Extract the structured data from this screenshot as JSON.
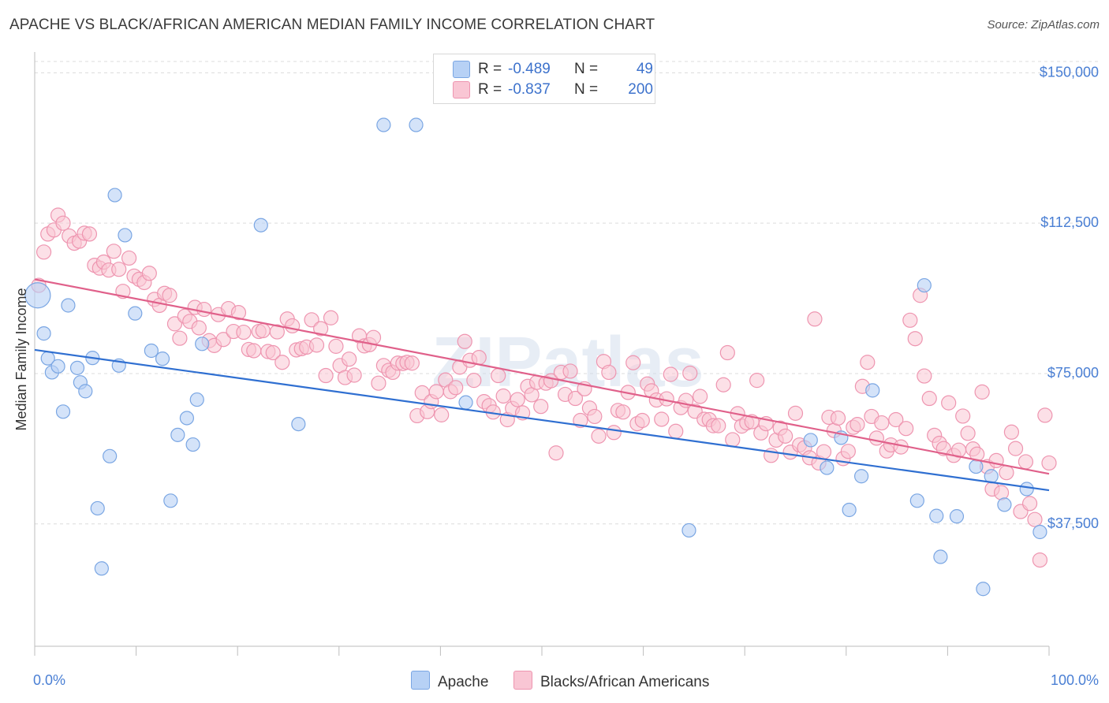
{
  "title": "APACHE VS BLACK/AFRICAN AMERICAN MEDIAN FAMILY INCOME CORRELATION CHART",
  "source": "Source: ZipAtlas.com",
  "watermark": "ZIPatlas",
  "colors": {
    "apache_fill": "#b7d1f5",
    "apache_stroke": "#7aa6e3",
    "apache_line": "#2f6fd1",
    "black_fill": "#f9c6d4",
    "black_stroke": "#ee95b0",
    "black_line": "#e0608a",
    "axis_text": "#4a7fd4",
    "grid": "#dcdcdc"
  },
  "legend": {
    "rows": [
      {
        "r_label": "R =",
        "r_value": "-0.489",
        "n_label": "N =",
        "n_value": "49"
      },
      {
        "r_label": "R =",
        "r_value": "-0.837",
        "n_label": "N =",
        "n_value": "200"
      }
    ]
  },
  "bottom_legend": [
    "Apache",
    "Blacks/African Americans"
  ],
  "chart_data": {
    "type": "scatter",
    "title": "APACHE VS BLACK/AFRICAN AMERICAN MEDIAN FAMILY INCOME CORRELATION CHART",
    "xlabel": "",
    "ylabel": "Median Family Income",
    "x_tick_labels": [
      "0.0%",
      "100.0%"
    ],
    "y_tick_labels": [
      "$37,500",
      "$75,000",
      "$112,500",
      "$150,000"
    ],
    "y_ticks": [
      37500,
      75000,
      112500,
      150000
    ],
    "xlim": [
      0,
      100
    ],
    "ylim": [
      7000,
      154000
    ],
    "grid": true,
    "legend_position": "top-center",
    "series": [
      {
        "name": "Apache",
        "R": -0.489,
        "N": 49,
        "trend": {
          "x0": 0,
          "y0": 80900,
          "x1": 100,
          "y1": 45900
        },
        "points": [
          [
            0.3,
            94500
          ],
          [
            0.9,
            85000
          ],
          [
            1.3,
            78800
          ],
          [
            1.7,
            75300
          ],
          [
            2.3,
            76800
          ],
          [
            2.8,
            65500
          ],
          [
            3.3,
            92000
          ],
          [
            4.2,
            76400
          ],
          [
            4.5,
            72800
          ],
          [
            5.0,
            70600
          ],
          [
            5.7,
            78900
          ],
          [
            6.2,
            41400
          ],
          [
            6.6,
            26400
          ],
          [
            7.4,
            54400
          ],
          [
            7.9,
            119500
          ],
          [
            8.3,
            77000
          ],
          [
            8.9,
            109500
          ],
          [
            9.9,
            90000
          ],
          [
            11.5,
            80700
          ],
          [
            12.6,
            78700
          ],
          [
            13.4,
            43300
          ],
          [
            14.1,
            59700
          ],
          [
            15.0,
            63900
          ],
          [
            15.6,
            57300
          ],
          [
            16.0,
            68500
          ],
          [
            16.5,
            82400
          ],
          [
            22.3,
            112000
          ],
          [
            26.0,
            62400
          ],
          [
            34.4,
            137000
          ],
          [
            37.6,
            137000
          ],
          [
            42.5,
            67800
          ],
          [
            64.5,
            35900
          ],
          [
            76.5,
            58400
          ],
          [
            78.1,
            51500
          ],
          [
            79.5,
            59000
          ],
          [
            80.3,
            41000
          ],
          [
            81.5,
            49400
          ],
          [
            82.6,
            70800
          ],
          [
            87.0,
            43300
          ],
          [
            87.7,
            97000
          ],
          [
            88.9,
            39500
          ],
          [
            89.3,
            29300
          ],
          [
            90.9,
            39400
          ],
          [
            92.8,
            51800
          ],
          [
            93.5,
            21300
          ],
          [
            94.3,
            49400
          ],
          [
            95.6,
            42300
          ],
          [
            97.8,
            46200
          ],
          [
            99.1,
            35500
          ]
        ]
      },
      {
        "name": "Blacks/African Americans",
        "R": -0.837,
        "N": 200,
        "trend": {
          "x0": 0,
          "y0": 98500,
          "x1": 100,
          "y1": 50000
        },
        "points": [
          [
            0.4,
            97000
          ],
          [
            0.9,
            105300
          ],
          [
            1.3,
            109800
          ],
          [
            1.9,
            110800
          ],
          [
            2.3,
            114500
          ],
          [
            2.8,
            112500
          ],
          [
            3.4,
            109300
          ],
          [
            3.9,
            107500
          ],
          [
            4.4,
            108000
          ],
          [
            4.9,
            110000
          ],
          [
            5.4,
            109800
          ],
          [
            5.9,
            102000
          ],
          [
            6.4,
            101300
          ],
          [
            6.8,
            102800
          ],
          [
            7.3,
            100800
          ],
          [
            7.8,
            105500
          ],
          [
            8.3,
            101000
          ],
          [
            8.7,
            95500
          ],
          [
            9.3,
            103800
          ],
          [
            9.8,
            99300
          ],
          [
            10.3,
            98500
          ],
          [
            10.8,
            97700
          ],
          [
            11.3,
            100000
          ],
          [
            11.8,
            93500
          ],
          [
            12.3,
            92000
          ],
          [
            12.8,
            95000
          ],
          [
            13.3,
            94500
          ],
          [
            13.8,
            87400
          ],
          [
            14.3,
            83800
          ],
          [
            14.8,
            89300
          ],
          [
            15.3,
            88000
          ],
          [
            15.8,
            91500
          ],
          [
            16.2,
            86400
          ],
          [
            16.7,
            91000
          ],
          [
            17.2,
            83200
          ],
          [
            17.7,
            82000
          ],
          [
            18.1,
            89700
          ],
          [
            18.6,
            83500
          ],
          [
            19.1,
            91200
          ],
          [
            19.6,
            85500
          ],
          [
            20.1,
            90200
          ],
          [
            20.6,
            85300
          ],
          [
            21.1,
            81000
          ],
          [
            21.6,
            80700
          ],
          [
            22.1,
            85500
          ],
          [
            22.5,
            85700
          ],
          [
            23.0,
            80500
          ],
          [
            23.5,
            80200
          ],
          [
            23.9,
            85400
          ],
          [
            24.4,
            77800
          ],
          [
            24.9,
            88600
          ],
          [
            25.4,
            86900
          ],
          [
            25.8,
            80900
          ],
          [
            26.3,
            81200
          ],
          [
            26.8,
            81600
          ],
          [
            27.3,
            88400
          ],
          [
            27.8,
            82100
          ],
          [
            28.2,
            86200
          ],
          [
            28.7,
            74500
          ],
          [
            29.2,
            88900
          ],
          [
            29.7,
            81800
          ],
          [
            30.1,
            77000
          ],
          [
            30.6,
            74000
          ],
          [
            31.0,
            78600
          ],
          [
            31.5,
            74600
          ],
          [
            32.0,
            84400
          ],
          [
            32.5,
            81900
          ],
          [
            33.0,
            82200
          ],
          [
            33.4,
            84000
          ],
          [
            33.9,
            72600
          ],
          [
            34.4,
            77000
          ],
          [
            34.9,
            75800
          ],
          [
            35.3,
            75300
          ],
          [
            35.8,
            77600
          ],
          [
            36.3,
            77500
          ],
          [
            36.7,
            77800
          ],
          [
            37.2,
            77600
          ],
          [
            37.7,
            64500
          ],
          [
            38.2,
            70200
          ],
          [
            38.7,
            65500
          ],
          [
            39.1,
            68000
          ],
          [
            39.6,
            70500
          ],
          [
            40.1,
            64700
          ],
          [
            40.5,
            73400
          ],
          [
            41.0,
            70500
          ],
          [
            41.5,
            71500
          ],
          [
            41.9,
            76600
          ],
          [
            42.4,
            83000
          ],
          [
            42.9,
            78300
          ],
          [
            43.3,
            73300
          ],
          [
            43.8,
            79000
          ],
          [
            44.3,
            68000
          ],
          [
            44.8,
            67000
          ],
          [
            45.2,
            65400
          ],
          [
            45.7,
            74500
          ],
          [
            46.2,
            69400
          ],
          [
            46.6,
            63500
          ],
          [
            47.1,
            66300
          ],
          [
            47.6,
            68500
          ],
          [
            48.1,
            65200
          ],
          [
            48.6,
            71800
          ],
          [
            49.0,
            69700
          ],
          [
            49.5,
            72800
          ],
          [
            49.9,
            66800
          ],
          [
            50.4,
            72600
          ],
          [
            50.9,
            73200
          ],
          [
            51.4,
            55200
          ],
          [
            51.9,
            75300
          ],
          [
            52.3,
            69800
          ],
          [
            52.8,
            75600
          ],
          [
            53.3,
            68800
          ],
          [
            53.8,
            63300
          ],
          [
            54.2,
            71200
          ],
          [
            54.7,
            66400
          ],
          [
            55.2,
            64300
          ],
          [
            55.6,
            59400
          ],
          [
            56.1,
            78000
          ],
          [
            56.6,
            75300
          ],
          [
            57.1,
            60300
          ],
          [
            57.5,
            65800
          ],
          [
            58.0,
            65400
          ],
          [
            58.5,
            70300
          ],
          [
            59.0,
            77700
          ],
          [
            59.4,
            62500
          ],
          [
            59.9,
            63300
          ],
          [
            60.4,
            72400
          ],
          [
            60.8,
            70700
          ],
          [
            61.3,
            68400
          ],
          [
            61.8,
            63600
          ],
          [
            62.3,
            68700
          ],
          [
            62.7,
            74800
          ],
          [
            63.2,
            60600
          ],
          [
            63.7,
            66500
          ],
          [
            64.2,
            68300
          ],
          [
            64.6,
            75100
          ],
          [
            65.1,
            65600
          ],
          [
            65.6,
            69300
          ],
          [
            66.0,
            63600
          ],
          [
            66.5,
            63500
          ],
          [
            66.9,
            62000
          ],
          [
            67.4,
            62000
          ],
          [
            67.9,
            72200
          ],
          [
            68.3,
            80200
          ],
          [
            68.8,
            58500
          ],
          [
            69.3,
            65000
          ],
          [
            69.7,
            61900
          ],
          [
            70.2,
            62700
          ],
          [
            70.7,
            63000
          ],
          [
            71.2,
            73300
          ],
          [
            71.6,
            60200
          ],
          [
            72.1,
            62500
          ],
          [
            72.6,
            54600
          ],
          [
            73.1,
            58400
          ],
          [
            73.5,
            61400
          ],
          [
            74.0,
            59400
          ],
          [
            74.5,
            55400
          ],
          [
            75.0,
            65100
          ],
          [
            75.4,
            57200
          ],
          [
            75.9,
            56500
          ],
          [
            76.4,
            54000
          ],
          [
            76.9,
            88600
          ],
          [
            77.3,
            52700
          ],
          [
            77.8,
            55500
          ],
          [
            78.3,
            64100
          ],
          [
            78.8,
            60800
          ],
          [
            79.2,
            63900
          ],
          [
            79.7,
            53800
          ],
          [
            80.2,
            55600
          ],
          [
            80.7,
            61600
          ],
          [
            81.1,
            62300
          ],
          [
            81.6,
            71800
          ],
          [
            82.1,
            77800
          ],
          [
            82.5,
            64300
          ],
          [
            83.0,
            58900
          ],
          [
            83.5,
            62700
          ],
          [
            84.0,
            55700
          ],
          [
            84.4,
            57200
          ],
          [
            84.9,
            63500
          ],
          [
            85.4,
            56700
          ],
          [
            85.9,
            61300
          ],
          [
            86.3,
            88300
          ],
          [
            86.8,
            83700
          ],
          [
            87.3,
            94500
          ],
          [
            87.7,
            74400
          ],
          [
            88.2,
            68800
          ],
          [
            88.7,
            59600
          ],
          [
            89.2,
            57600
          ],
          [
            89.6,
            56300
          ],
          [
            90.1,
            67700
          ],
          [
            90.6,
            54600
          ],
          [
            91.1,
            55900
          ],
          [
            91.5,
            64400
          ],
          [
            92.0,
            60100
          ],
          [
            92.5,
            56200
          ],
          [
            92.9,
            54900
          ],
          [
            93.4,
            70400
          ],
          [
            93.9,
            51800
          ],
          [
            94.4,
            46200
          ],
          [
            94.8,
            53300
          ],
          [
            95.3,
            45300
          ],
          [
            95.8,
            50300
          ],
          [
            96.3,
            60400
          ],
          [
            96.7,
            56300
          ],
          [
            97.2,
            40600
          ],
          [
            97.7,
            53000
          ],
          [
            98.1,
            42600
          ],
          [
            98.6,
            38600
          ],
          [
            99.1,
            28500
          ],
          [
            99.6,
            64600
          ],
          [
            100.0,
            52700
          ]
        ]
      }
    ]
  }
}
